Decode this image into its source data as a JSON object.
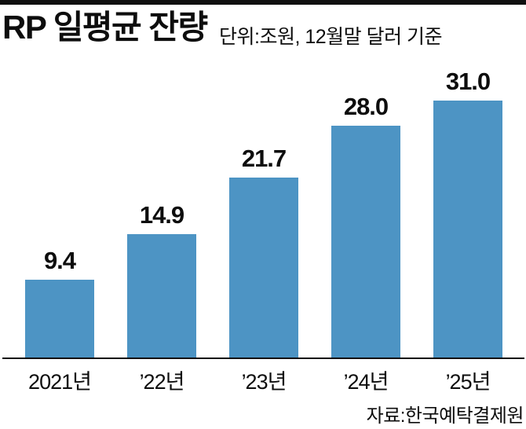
{
  "header": {
    "title": "RP 일평균 잔량",
    "subtitle": "단위:조원, 12월말 달러 기준"
  },
  "chart_data": {
    "type": "bar",
    "title": "RP 일평균 잔량",
    "unit_note": "단위:조원, 12월말 달러 기준",
    "categories": [
      "2021년",
      "’22년",
      "’23년",
      "’24년",
      "’25년"
    ],
    "values": [
      9.4,
      14.9,
      21.7,
      28.0,
      31.0
    ],
    "value_labels": [
      "9.4",
      "14.9",
      "21.7",
      "28.0",
      "31.0"
    ],
    "ylim": [
      0,
      37.5
    ],
    "grid": false,
    "legend": false,
    "bar_color": "#4d94c4",
    "axis_color": "#111111",
    "text_color": "#0d0d0d"
  },
  "footer": {
    "source": "자료:한국예탁결제원"
  }
}
